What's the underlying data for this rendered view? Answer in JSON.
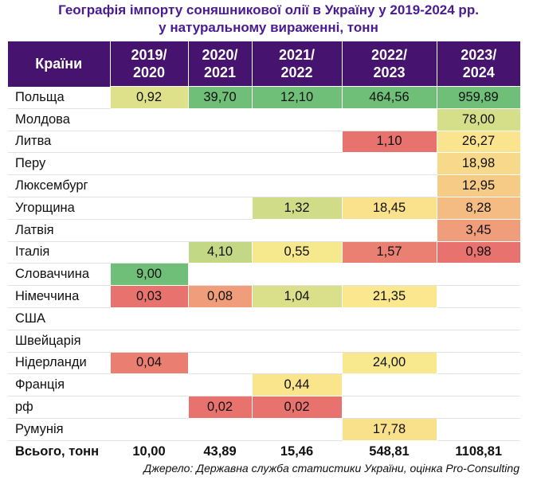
{
  "title": {
    "line1": "Географія імпорту соняшникової олії в Україну у 2019-2024 рр.",
    "line2": "у натуральному вираженні, тонн"
  },
  "chart_data": {
    "type": "table",
    "columns": [
      {
        "line1": "Країни",
        "line2": ""
      },
      {
        "line1": "2019/",
        "line2": "2020"
      },
      {
        "line1": "2020/",
        "line2": "2021"
      },
      {
        "line1": "2021/",
        "line2": "2022"
      },
      {
        "line1": "2022/",
        "line2": "2023"
      },
      {
        "line1": "2023/",
        "line2": "2024"
      }
    ],
    "rows": [
      {
        "country": "Польща",
        "values": [
          "0,92",
          "39,70",
          "12,10",
          "464,56",
          "959,89"
        ]
      },
      {
        "country": "Молдова",
        "values": [
          "",
          "",
          "",
          "",
          "78,00"
        ]
      },
      {
        "country": "Литва",
        "values": [
          "",
          "",
          "",
          "1,10",
          "26,27"
        ]
      },
      {
        "country": "Перу",
        "values": [
          "",
          "",
          "",
          "",
          "18,98"
        ]
      },
      {
        "country": "Люксембург",
        "values": [
          "",
          "",
          "",
          "",
          "12,95"
        ]
      },
      {
        "country": "Угорщина",
        "values": [
          "",
          "",
          "1,32",
          "18,45",
          "8,28"
        ]
      },
      {
        "country": "Латвія",
        "values": [
          "",
          "",
          "",
          "",
          "3,45"
        ]
      },
      {
        "country": "Італія",
        "values": [
          "",
          "4,10",
          "0,55",
          "1,57",
          "0,98"
        ]
      },
      {
        "country": "Словаччина",
        "values": [
          "9,00",
          "",
          "",
          "",
          ""
        ]
      },
      {
        "country": "Німеччина",
        "values": [
          "0,03",
          "0,08",
          "1,04",
          "21,35",
          ""
        ]
      },
      {
        "country": "США",
        "values": [
          "",
          "",
          "",
          "",
          ""
        ]
      },
      {
        "country": "Швейцарія",
        "values": [
          "",
          "",
          "",
          "",
          ""
        ]
      },
      {
        "country": "Нідерланди",
        "values": [
          "0,04",
          "",
          "",
          "24,00",
          ""
        ]
      },
      {
        "country": "Франція",
        "values": [
          "",
          "",
          "0,44",
          "",
          ""
        ]
      },
      {
        "country": "рф",
        "values": [
          "",
          "0,02",
          "0,02",
          "",
          ""
        ]
      },
      {
        "country": "Румунія",
        "values": [
          "",
          "",
          "",
          "17,78",
          ""
        ]
      }
    ],
    "total": {
      "label": "Всього, тонн",
      "values": [
        "10,00",
        "43,89",
        "15,46",
        "548,81",
        "1108,81"
      ]
    },
    "colors": {
      "header_bg": "#46136e",
      "title": "#4a1a92",
      "low": "#e8726e",
      "mid": "#fbe98e",
      "high": "#6fbf78"
    }
  },
  "source": "Джерело: Державна служба статистики України, оцінка Pro-Consulting"
}
